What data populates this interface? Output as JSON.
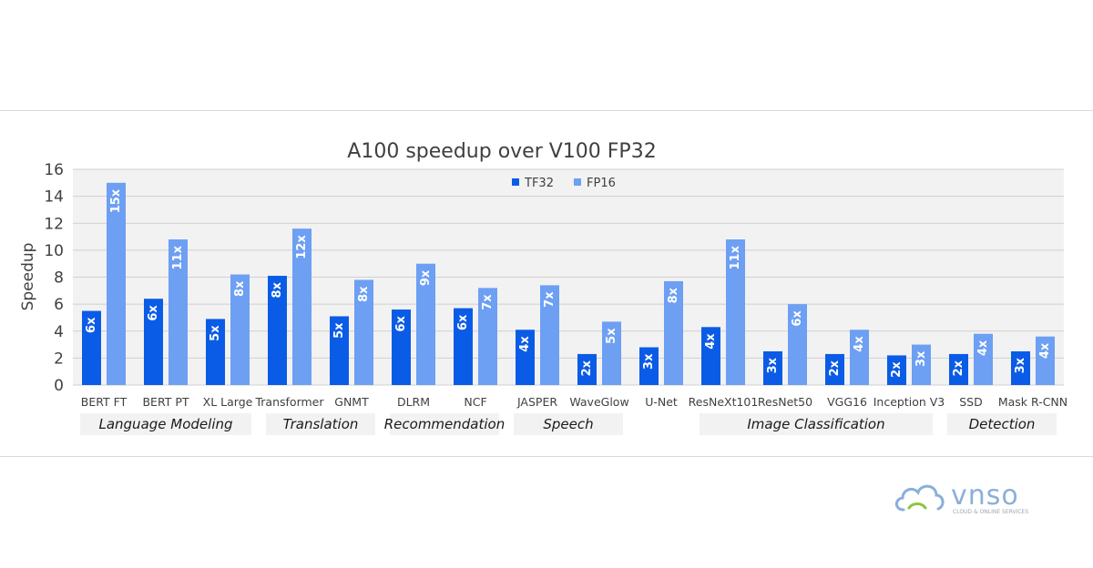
{
  "chart_data": {
    "type": "bar",
    "title": "A100 speedup over V100 FP32",
    "ylabel": "Speedup",
    "xlabel": "",
    "ylim": [
      0,
      16
    ],
    "yticks": [
      0,
      2,
      4,
      6,
      8,
      10,
      12,
      14,
      16
    ],
    "grid": true,
    "legend_position": "top-center",
    "categories": [
      "BERT FT",
      "BERT PT",
      "XL Large",
      "Transformer",
      "GNMT",
      "DLRM",
      "NCF",
      "JASPER",
      "WaveGlow",
      "U-Net",
      "ResNeXt101",
      "ResNet50",
      "VGG16",
      "Inception V3",
      "SSD",
      "Mask R-CNN"
    ],
    "series": [
      {
        "name": "TF32",
        "color": "#0a5ce6",
        "values": [
          5.5,
          6.4,
          4.9,
          8.1,
          5.1,
          5.6,
          5.7,
          4.1,
          2.3,
          2.8,
          4.3,
          2.5,
          2.3,
          2.2,
          2.3,
          2.5
        ],
        "labels": [
          "6x",
          "6x",
          "5x",
          "8x",
          "5x",
          "6x",
          "6x",
          "4x",
          "2x",
          "3x",
          "4x",
          "3x",
          "2x",
          "2x",
          "2x",
          "3x"
        ]
      },
      {
        "name": "FP16",
        "color": "#6d9ff3",
        "values": [
          15.0,
          10.8,
          8.2,
          11.6,
          7.8,
          9.0,
          7.2,
          7.4,
          4.7,
          7.7,
          10.8,
          6.0,
          4.1,
          3.0,
          3.8,
          3.6
        ],
        "labels": [
          "15x",
          "11x",
          "8x",
          "12x",
          "8x",
          "9x",
          "7x",
          "7x",
          "5x",
          "8x",
          "11x",
          "6x",
          "4x",
          "3x",
          "4x",
          "4x"
        ]
      }
    ],
    "groups": [
      {
        "label": "Language Modeling",
        "categories": [
          "BERT FT",
          "BERT PT",
          "XL Large"
        ]
      },
      {
        "label": "Translation",
        "categories": [
          "Transformer",
          "GNMT"
        ]
      },
      {
        "label": "Recommendation",
        "categories": [
          "DLRM",
          "NCF"
        ]
      },
      {
        "label": "Speech",
        "categories": [
          "JASPER",
          "WaveGlow"
        ]
      },
      {
        "label": "",
        "categories": [
          "U-Net"
        ]
      },
      {
        "label": "Image Classification",
        "categories": [
          "ResNeXt101",
          "ResNet50",
          "VGG16",
          "Inception V3"
        ]
      },
      {
        "label": "Detection",
        "categories": [
          "SSD",
          "Mask R-CNN"
        ]
      }
    ]
  },
  "logo": {
    "name": "vnso",
    "tagline": "CLOUD & ONLINE SERVICES",
    "icon": "cloud-icon",
    "color": "#8ab0d8",
    "accent": "#8cc63f"
  }
}
